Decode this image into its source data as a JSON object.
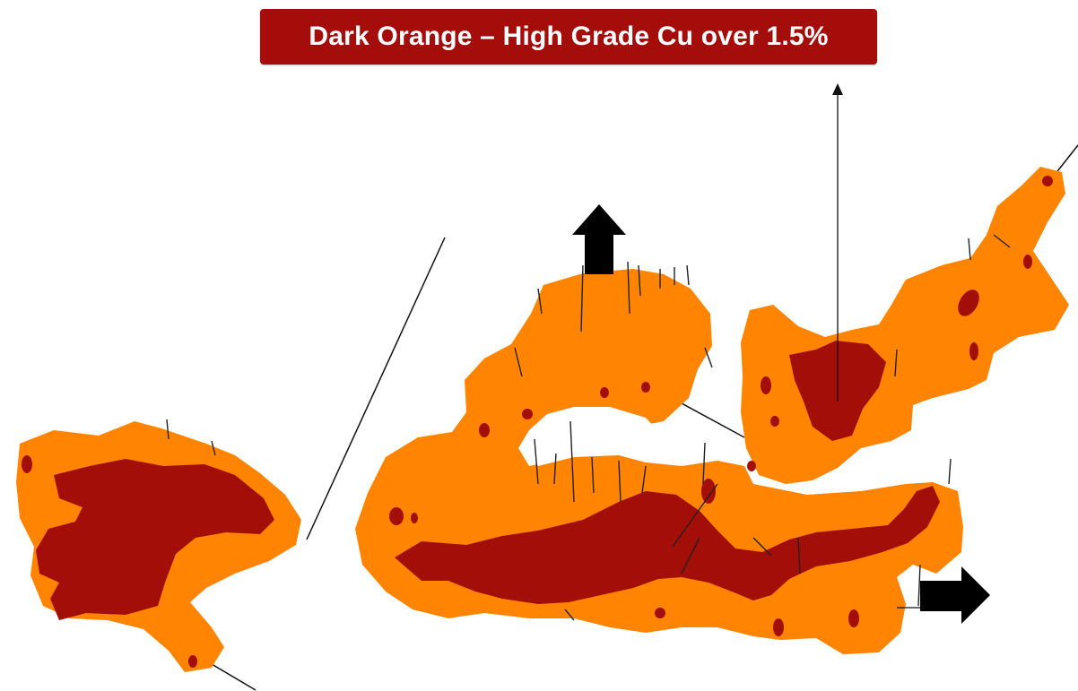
{
  "banner": {
    "title": "Dark Orange – High Grade Cu over 1.5%"
  },
  "colors": {
    "orange": "#fe8402",
    "dark_red": "#a30e08",
    "banner_bg": "#a50d0a",
    "arrow": "#000000"
  },
  "icons": [
    "arrow-up-icon",
    "arrow-right-icon"
  ]
}
